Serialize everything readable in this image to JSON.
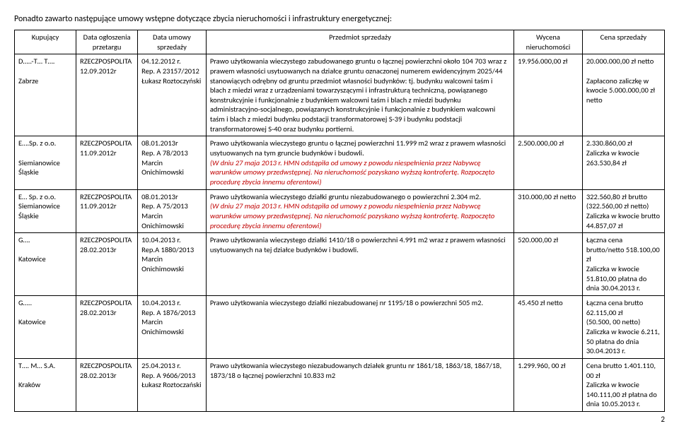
{
  "title": "Ponadto zawarto następujące umowy wstępne dotyczące zbycia nieruchomości i infrastruktury energetycznej:",
  "headers": {
    "buyer": "Kupujący",
    "date1": "Data ogłoszenia przetargu",
    "date2": "Data umowy sprzedaży",
    "subject": "Przedmiot sprzedaży",
    "valuation": "Wycena nieruchomości",
    "price": "Cena sprzedaży"
  },
  "rows": [
    {
      "buyer": "D…..-T… T….\n\nZabrze",
      "date1": "RZECZPOSPOLITA 12.09.2012r",
      "date2": "04.12.2012 r.\nRep. A 23157/2012\nŁukasz Roztoczyński",
      "subject": "Prawo użytkowania wieczystego zabudowanego gruntu o łącznej powierzchni około 104 703  wraz z prawem własności usytuowanych na działce gruntu oznaczonej numerem ewidencyjnym 2025/44 stanowiących odrębny od gruntu przedmiot własności budynków: tj. budynku walcowni taśm i blach z miedzi wraz z urządzeniami towarzyszącymi i infrastrukturą techniczną, powiązanego konstrukcyjnie i funkcjonalnie z budynkiem walcowni taśm i blach  z miedzi budynku administracyjno-socjalnego, powiązanych konstrukcyjnie i funkcjonalnie z budynkiem walcowni taśm i blach z miedzi budynku podstacji transformatorowej S-39 i budynku podstacji transformatorowej S-40 oraz budynku portierni.",
      "valuation": "19.956.000,00 zł",
      "price": "20.000.000,00 zł netto\n\nZapłacono zaliczkę w kwocie 5.000.000,00 zł netto"
    },
    {
      "buyer": "E….Sp. z o.o.\n\nSiemianowice Śląskie",
      "date1": "RZECZPOSPOLITA 11.09.2012r",
      "date2": "08.01.2013r\nRep. A 78/2013\nMarcin Onichimowski",
      "subject_plain": "Prawo użytkowania wieczystego gruntu o łącznej powierzchni 11.999 m2 wraz z prawem własności usytuowanych na tym gruncie budynków i budowli.",
      "subject_italic": "(W dniu 27 maja 2013 r. HMN odstąpiła od umowy z powodu niespełnienia przez Nabywcę warunków umowy przedwstępnej. Na nieruchomość pozyskano wyższą kontrofertę. Rozpoczęto procedurę zbycia innemu oferentowi)",
      "valuation": "2.500.000,00 zł",
      "price": "2.330.860,00 zł\nZaliczka w kwocie 263.530,84 zł"
    },
    {
      "buyer": "E… Sp. z o.o.\nSiemianowice Śląskie",
      "date1": "RZECZPOSPOLITA 11.09.2012r",
      "date2": "08.01.2013r\nRep. A 75/2013\nMarcin Onichimowski",
      "subject_plain": "Prawo użytkowania wieczystego działki gruntu niezabudowanego o powierzchni 2.304 m2.",
      "subject_italic": "(W dniu 27 maja 2013 r. HMN odstąpiła od umowy z powodu niespełnienia przez Nabywcę warunków umowy przedwstępnej. Na nieruchomość pozyskano wyższą kontrofertę. Rozpoczęto procedurę zbycia innemu oferentowi)",
      "valuation": "310.000,00 zł netto",
      "price": "322.560,80 zł brutto\n(322.560,00 zł netto)\nZaliczka w kwocie brutto 44.857,07 zł"
    },
    {
      "buyer": "G….\n\nKatowice",
      "date1": "RZECZPOSPOLITA 28.02.2013r",
      "date2": "10.04.2013 r.\nRep.A 1880/2013\nMarcin Onichimowski",
      "subject": "Prawo użytkowania wieczystego działki 1410/18 o powierzchni 4.991 m2 wraz z prawem własności usytuowanych na tej działce budynków i budowli.",
      "valuation": "520.000,00 zł",
      "price": "Łączna cena brutto/netto 518.100,00 zł\nZaliczka w kwocie 51.810,00 płatna do dnia 30.04.2013 r."
    },
    {
      "buyer": "G…..\n\nKatowice",
      "date1": "RZECZPOSPOLITA 28.02.2013r",
      "date2": "10.04.2013 r.\nRep. A 1876/2013\nMarcin Onichimowski",
      "subject": "Prawo użytkowania wieczystego działki niezabudowanej nr 1195/18 o powierzchni 505 m2.",
      "valuation": "45.450 zł netto",
      "price": "Łączna cena brutto 62.115,00 zł\n(50.500, 00 netto)\nZaliczka w kwocie 6.211, 50 płatna do dnia 30.04.2013 r."
    },
    {
      "buyer": "T…. M… S.A.\n\nKraków",
      "date1": "RZECZPOSPOLITA 28.02.2013r",
      "date2": "25.04.2013 r.\nRep. A 9606/2013\nŁukasz Roztoczański",
      "subject": "Prawo użytkowania wieczystego niezabudowanych działek gruntu nr 1861/18, 1863/18, 1867/18, 1873/18 o łącznej powierzchni 10.833 m2",
      "valuation": "1.299.960, 00 zł",
      "price": "Cena brutto 1.401.110, 00 zł\nZaliczka w kwocie 140.111,00 zł płatna do dnia 10.05.2013 r."
    }
  ],
  "page_number": "2"
}
